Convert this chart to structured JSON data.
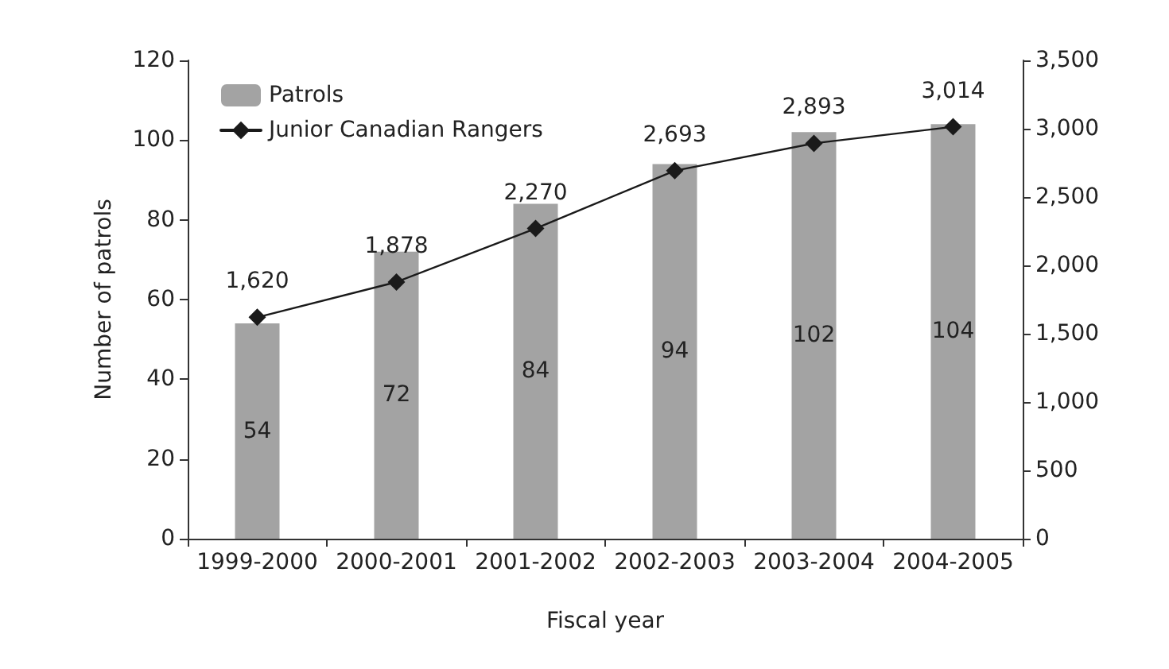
{
  "chart_data": {
    "type": "bar",
    "xlabel": "Fiscal year",
    "ylabel": "Number of patrols",
    "categories": [
      "1999-2000",
      "2000-2001",
      "2001-2002",
      "2002-2003",
      "2003-2004",
      "2004-2005"
    ],
    "series": [
      {
        "name": "Patrols",
        "color": "#a3a3a3",
        "values": [
          54,
          72,
          84,
          94,
          102,
          104
        ],
        "value_labels": [
          "54",
          "72",
          "84",
          "94",
          "102",
          "104"
        ]
      },
      {
        "name": "Junior Canadian Rangers",
        "type": "line",
        "axis": "y2",
        "color": "#1a1a1a",
        "marker": "diamond",
        "values": [
          1620,
          1878,
          2270,
          2693,
          2893,
          3014
        ],
        "value_labels": [
          "1,620",
          "1,878",
          "2,270",
          "2,693",
          "2,893",
          "3,014"
        ]
      }
    ],
    "ylim": [
      0,
      120
    ],
    "yticks": [
      0,
      20,
      40,
      60,
      80,
      100,
      120
    ],
    "y2lim": [
      0,
      3500
    ],
    "y2ticks": [
      {
        "value": 0,
        "label": "0"
      },
      {
        "value": 500,
        "label": "500"
      },
      {
        "value": 1000,
        "label": "1,000"
      },
      {
        "value": 1500,
        "label": "1,500"
      },
      {
        "value": 2000,
        "label": "2,000"
      },
      {
        "value": 2500,
        "label": "2,500"
      },
      {
        "value": 3000,
        "label": "3,000"
      },
      {
        "value": 3500,
        "label": "3,500"
      }
    ],
    "grid": false,
    "legend": "top left"
  }
}
